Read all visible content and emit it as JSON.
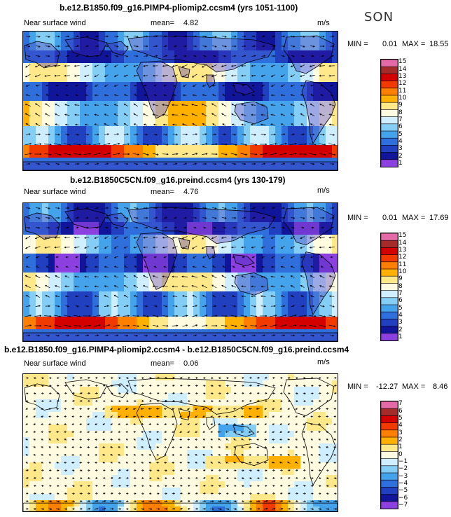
{
  "season": "SON",
  "panels": [
    {
      "title": "b.e12.B1850.f09_g16.PIMP4-pliomip2.ccsm4 (yrs 1051-1100)",
      "field": "Near surface wind",
      "mean_label": "mean=",
      "mean_value": "4.82",
      "units": "m/s",
      "min_label": "MIN =",
      "min_value": "0.01",
      "max_label": "MAX =",
      "max_value": "18.55",
      "levels": [
        "15",
        "14",
        "13",
        "12",
        "11",
        "10",
        "9",
        "8",
        "7",
        "6",
        "5",
        "4",
        "3",
        "2",
        "1"
      ],
      "colors": [
        "#e36aa6",
        "#a52a2a",
        "#d40000",
        "#f03a00",
        "#ff7f00",
        "#ffb000",
        "#ffe88a",
        "#fffbe0",
        "#cfeeff",
        "#84cdf5",
        "#45a3ec",
        "#2f6fdc",
        "#2040c0",
        "#10159a",
        "#8d40e0"
      ]
    },
    {
      "title": "b.e12.B1850C5CN.f09_g16.preind.ccsm4 (yrs 130-179)",
      "field": "Near surface wind",
      "mean_label": "mean=",
      "mean_value": "4.76",
      "units": "m/s",
      "min_label": "MIN =",
      "min_value": "0.01",
      "max_label": "MAX =",
      "max_value": "17.69",
      "levels": [
        "15",
        "14",
        "13",
        "12",
        "11",
        "10",
        "9",
        "8",
        "7",
        "6",
        "5",
        "4",
        "3",
        "2",
        "1"
      ],
      "colors": [
        "#e36aa6",
        "#a52a2a",
        "#d40000",
        "#f03a00",
        "#ff7f00",
        "#ffb000",
        "#ffe88a",
        "#fffbe0",
        "#cfeeff",
        "#84cdf5",
        "#45a3ec",
        "#2f6fdc",
        "#2040c0",
        "#10159a",
        "#8d40e0"
      ]
    },
    {
      "title": "b.e12.B1850.f09_g16.PIMP4-pliomip2.ccsm4 - b.e12.B1850C5CN.f09_g16.preind.ccsm4",
      "field": "Near surface wind",
      "mean_label": "mean=",
      "mean_value": "0.06",
      "units": "m/s",
      "min_label": "MIN =",
      "min_value": "-12.27",
      "max_label": "MAX =",
      "max_value": "8.46",
      "levels": [
        "7",
        "6",
        "5",
        "4",
        "3",
        "2",
        "1",
        "0",
        "−1",
        "−2",
        "−3",
        "−4",
        "−5",
        "−6",
        "−7"
      ],
      "colors": [
        "#e36aa6",
        "#a52a2a",
        "#d40000",
        "#f03a00",
        "#ff7f00",
        "#ffb000",
        "#ffe88a",
        "#fffbe0",
        "#cfeeff",
        "#84cdf5",
        "#45a3ec",
        "#2f6fdc",
        "#2040c0",
        "#10159a",
        "#8d40e0"
      ]
    }
  ],
  "chart_data": [
    {
      "type": "heatmap",
      "title": "b.e12.B1850.f09_g16.PIMP4-pliomip2.ccsm4 (yrs 1051-1100)",
      "variable": "Near surface wind",
      "units": "m/s",
      "mean": 4.82,
      "min": 0.01,
      "max": 18.55,
      "contour_levels": [
        1,
        2,
        3,
        4,
        5,
        6,
        7,
        8,
        9,
        10,
        11,
        12,
        13,
        14,
        15
      ]
    },
    {
      "type": "heatmap",
      "title": "b.e12.B1850C5CN.f09_g16.preind.ccsm4 (yrs 130-179)",
      "variable": "Near surface wind",
      "units": "m/s",
      "mean": 4.76,
      "min": 0.01,
      "max": 17.69,
      "contour_levels": [
        1,
        2,
        3,
        4,
        5,
        6,
        7,
        8,
        9,
        10,
        11,
        12,
        13,
        14,
        15
      ]
    },
    {
      "type": "heatmap",
      "title": "b.e12.B1850.f09_g16.PIMP4-pliomip2.ccsm4 - b.e12.B1850C5CN.f09_g16.preind.ccsm4",
      "variable": "Near surface wind",
      "units": "m/s",
      "mean": 0.06,
      "min": -12.27,
      "max": 8.46,
      "contour_levels": [
        -7,
        -6,
        -5,
        -4,
        -3,
        -2,
        -1,
        0,
        1,
        2,
        3,
        4,
        5,
        6,
        7
      ]
    }
  ]
}
